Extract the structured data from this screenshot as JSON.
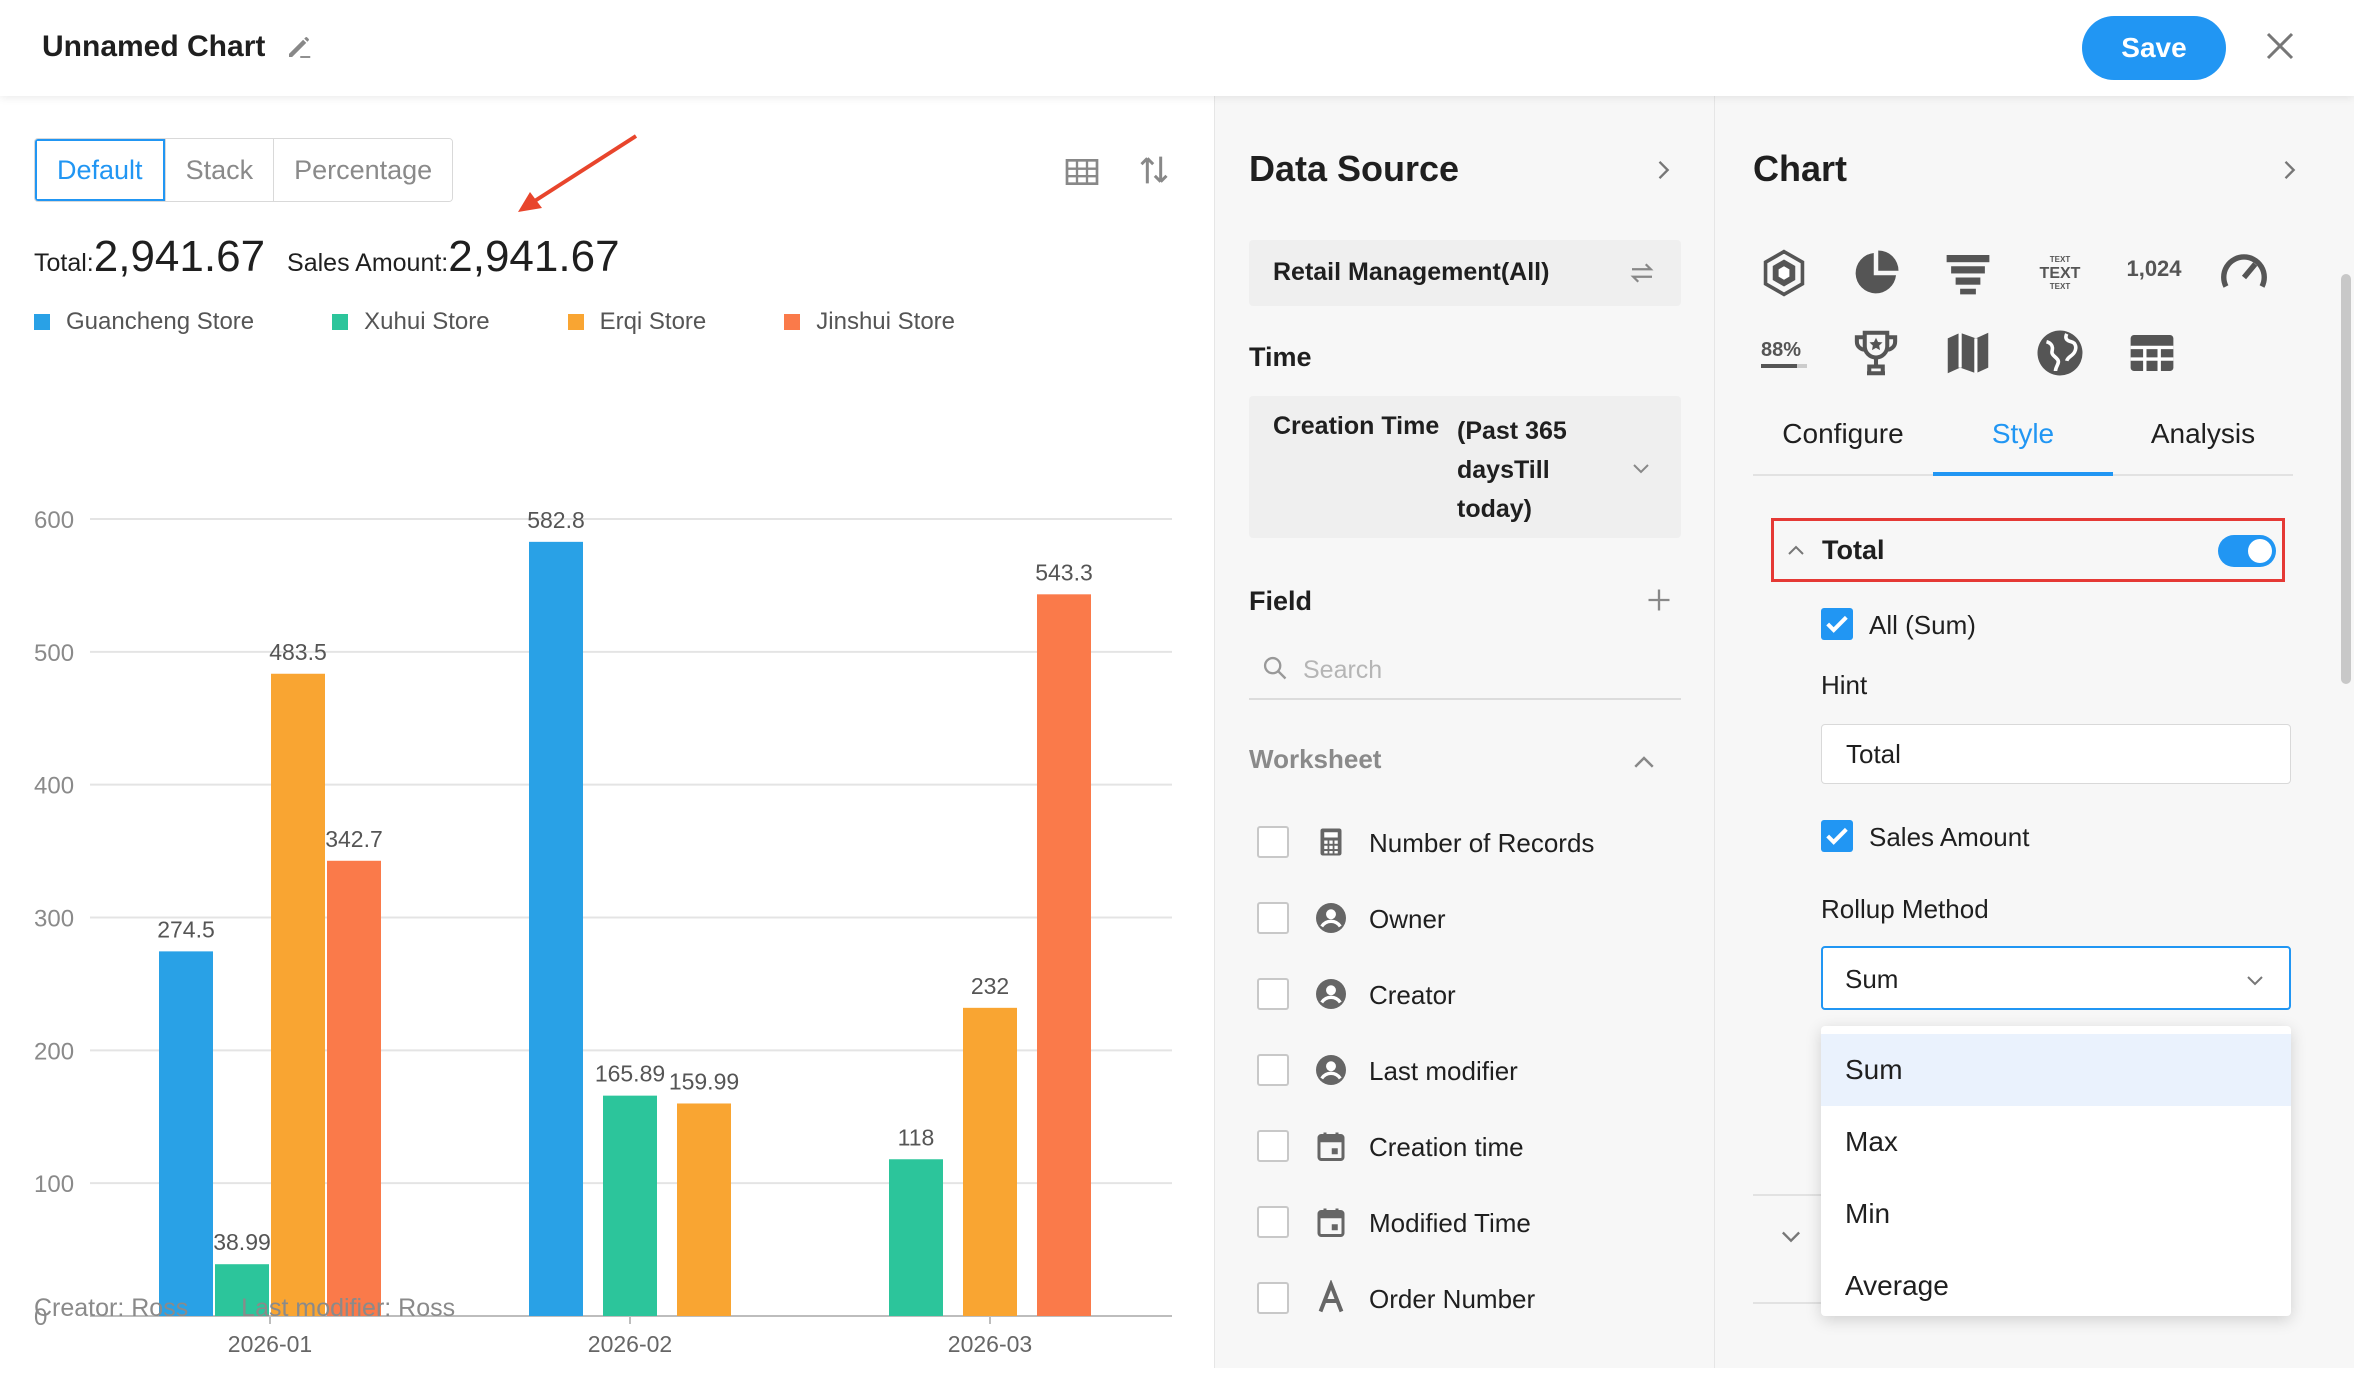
{
  "header": {
    "chart_name": "Unnamed Chart",
    "save_label": "Save"
  },
  "toolbar": {
    "modes": [
      "Default",
      "Stack",
      "Percentage"
    ],
    "active_mode": "Default"
  },
  "summary": {
    "total_label": "Total:",
    "total_value": "2,941.67",
    "sales_label": "Sales Amount:",
    "sales_value": "2,941.67"
  },
  "chart_data": {
    "type": "bar",
    "categories": [
      "2026-01",
      "2026-02",
      "2026-03"
    ],
    "series": [
      {
        "name": "Guancheng Store",
        "color": "#29a1e6",
        "values": [
          274.5,
          582.8,
          null
        ]
      },
      {
        "name": "Xuhui Store",
        "color": "#2cc59b",
        "values": [
          38.99,
          165.89,
          118
        ]
      },
      {
        "name": "Erqi Store",
        "color": "#f9a532",
        "values": [
          483.5,
          159.99,
          232
        ]
      },
      {
        "name": "Jinshui Store",
        "color": "#fa7a4a",
        "values": [
          342.7,
          null,
          543.3
        ]
      }
    ],
    "data_labels": [
      [
        "274.5",
        "582.8",
        ""
      ],
      [
        "38.99",
        "165.89",
        "118"
      ],
      [
        "483.5",
        "159.99",
        "232"
      ],
      [
        "342.7",
        "",
        "543.3"
      ]
    ],
    "y_ticks": [
      "0",
      "100",
      "200",
      "300",
      "400",
      "500",
      "600"
    ],
    "ylim": [
      0,
      600
    ],
    "grid": true,
    "legend": "top-left"
  },
  "footer": {
    "creator": "Creator: Ross",
    "modifier": "Last modifier: Ross"
  },
  "data_source": {
    "title": "Data Source",
    "source_name": "Retail Management(All)",
    "time_label": "Time",
    "time_field": "Creation Time",
    "time_value": "(Past 365 daysTill today)",
    "field_label": "Field",
    "search_placeholder": "Search",
    "worksheet_label": "Worksheet",
    "fields": [
      {
        "label": "Number of Records",
        "icon": "calculator-icon"
      },
      {
        "label": "Owner",
        "icon": "user-icon"
      },
      {
        "label": "Creator",
        "icon": "user-icon"
      },
      {
        "label": "Last modifier",
        "icon": "user-icon"
      },
      {
        "label": "Creation time",
        "icon": "calendar-icon"
      },
      {
        "label": "Modified Time",
        "icon": "calendar-icon"
      },
      {
        "label": "Order Number",
        "icon": "text-icon"
      }
    ]
  },
  "chart_panel": {
    "title": "Chart",
    "type_icons": [
      "radar-icon",
      "pie-icon",
      "funnel-icon",
      "word-cloud-icon",
      "number-icon",
      "gauge-icon",
      "progress-icon",
      "trophy-icon",
      "map-icon",
      "globe-icon",
      "table-icon"
    ],
    "number_icon_text": "1,024",
    "progress_icon_text": "88%",
    "tabs": [
      "Configure",
      "Style",
      "Analysis"
    ],
    "active_tab": "Style",
    "total_section": "Total",
    "total_enabled": true,
    "all_option": "All (Sum)",
    "hint_label": "Hint",
    "hint_value": "Total",
    "sales_option": "Sales Amount",
    "rollup_label": "Rollup Method",
    "rollup_value": "Sum",
    "rollup_options": [
      "Sum",
      "Max",
      "Min",
      "Average"
    ]
  },
  "colors": {
    "accent": "#2196f3",
    "highlight_border": "#e53935",
    "annotation_arrow": "#e8452c"
  }
}
